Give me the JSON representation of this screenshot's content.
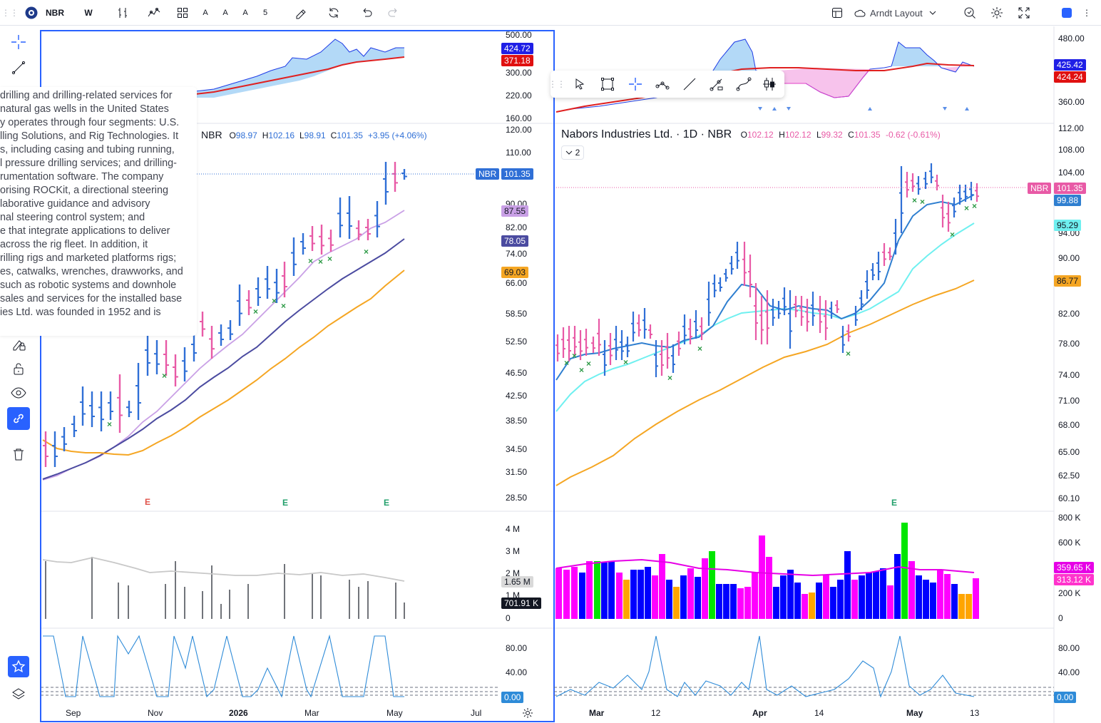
{
  "toolbar": {
    "symbol": "NBR",
    "interval": "W",
    "text_buttons": [
      "A",
      "A",
      "A",
      "5"
    ],
    "layout_name": "Arndt Layout",
    "accent": "#2962ff"
  },
  "description_lines": [
    "drilling and drilling-related services for",
    "natural gas wells in the United States",
    "y operates through four segments: U.S.",
    "lling Solutions, and Rig Technologies. It",
    "s, including casing and tubing running,",
    "l pressure drilling services; and drilling-",
    "rumentation software. The company",
    "orising ROCKit, a directional steering",
    "laborative guidance and advisory",
    "nal steering control system; and",
    "e that integrate applications to deliver",
    "across the rig fleet. In addition, it",
    "rilling rigs and marketed platforms rigs;",
    "es, catwalks, wrenches, drawworks, and",
    "such as robotic systems and downhole",
    "sales and services for the installed base",
    "ies Ltd. was founded in 1952 and is"
  ],
  "left_chart": {
    "legend": {
      "symbol": "NBR",
      "o_label": "O",
      "open": "98.97",
      "h_label": "H",
      "high": "102.16",
      "l_label": "L",
      "low": "98.91",
      "c_label": "C",
      "close": "101.35",
      "change": "+3.95 (+4.06%)"
    },
    "top_axis": [
      "500.00",
      "300.00",
      "220.00",
      "160.00"
    ],
    "top_labels": [
      "424.72",
      "371.18"
    ],
    "price_axis": [
      "120.00",
      "110.00",
      "90.00",
      "82.00",
      "74.00",
      "66.00",
      "58.50",
      "52.50",
      "46.50",
      "42.50",
      "38.50",
      "34.50",
      "31.50",
      "28.50"
    ],
    "price_tag_symbol": "NBR",
    "price_tag": "101.35",
    "ma_labels": [
      "87.55",
      "78.05",
      "69.03"
    ],
    "earnings": [
      "E",
      "E",
      "E"
    ],
    "volume_axis": [
      "4 M",
      "3 M",
      "2 M",
      "1 M",
      "0"
    ],
    "volume_labels": [
      "1.65 M",
      "701.91 K"
    ],
    "osc_axis": [
      "80.00",
      "40.00"
    ],
    "osc_label": "0.00",
    "time_axis": [
      "Sep",
      "Nov",
      "2026",
      "Mar",
      "May",
      "Jul"
    ]
  },
  "right_chart": {
    "title": "Nabors Industries Ltd. · 1D · NBR",
    "legend": {
      "o_label": "O",
      "open": "102.12",
      "h_label": "H",
      "high": "102.12",
      "l_label": "L",
      "low": "99.32",
      "c_label": "C",
      "close": "101.35",
      "change": "-0.62 (-0.61%)"
    },
    "collapse_count": "2",
    "top_axis": [
      "480.00",
      "360.00"
    ],
    "top_labels": [
      "425.42",
      "424.24"
    ],
    "price_axis": [
      "112.00",
      "108.00",
      "104.00",
      "94.00",
      "90.00",
      "82.00",
      "78.00",
      "74.00",
      "71.00",
      "68.00",
      "65.00",
      "62.50",
      "60.10"
    ],
    "price_tag_symbol": "NBR",
    "price_tag": "101.35",
    "ma_labels": [
      "99.88",
      "95.29",
      "86.77"
    ],
    "earnings": [
      "E"
    ],
    "volume_axis": [
      "800 K",
      "600 K",
      "200 K",
      "0"
    ],
    "volume_labels": [
      "359.65 K",
      "313.12 K"
    ],
    "osc_axis": [
      "80.00",
      "40.00"
    ],
    "osc_label": "0.00",
    "time_axis": [
      "Mar",
      "12",
      "Apr",
      "14",
      "May",
      "13"
    ]
  },
  "colors": {
    "up": "#2f6fd6",
    "down": "#e85aa6",
    "ma_fast": "#2f7fd0",
    "ma_mid": "#6ff0f0",
    "ma_slow": "#f5a623",
    "ma_weekly": "#4b4ba0",
    "ma_weekly_fast": "#c9a0e6",
    "rs_line": "#e02020",
    "green_x": "#2e9a47"
  }
}
